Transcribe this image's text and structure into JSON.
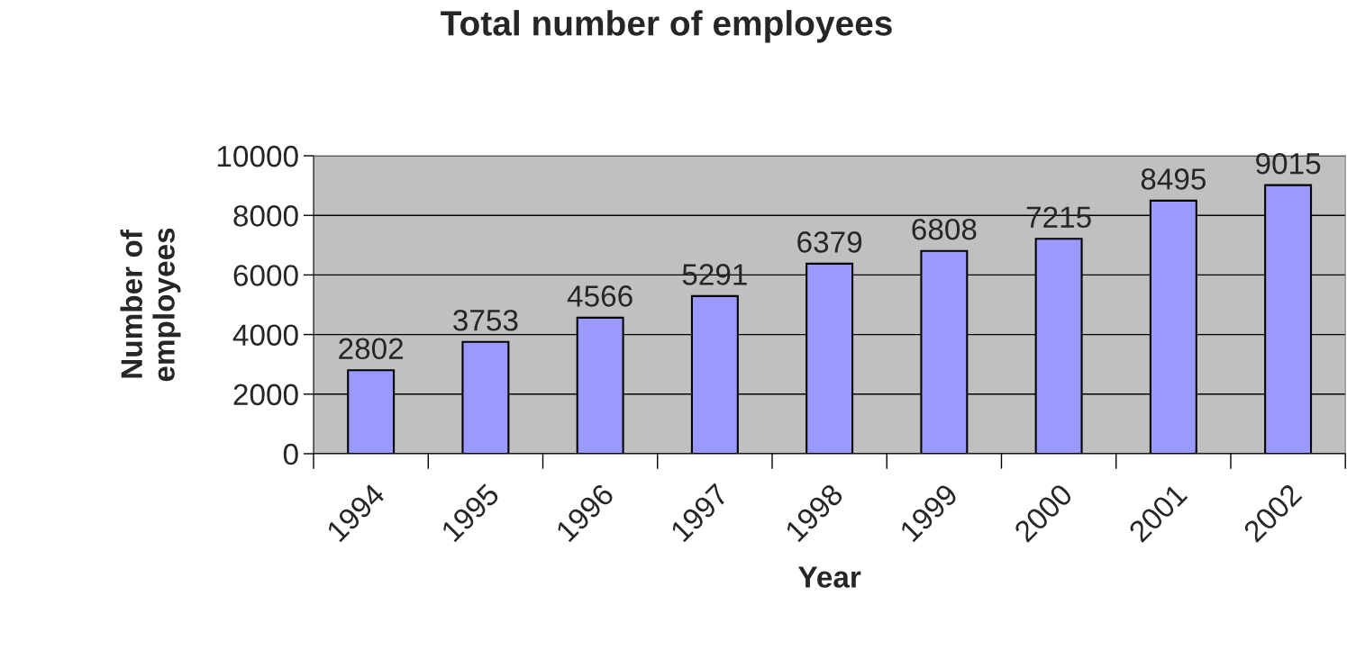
{
  "chart_data": {
    "type": "bar",
    "title": "Total number of employees",
    "xlabel": "Year",
    "ylabel": "Number of\nemployees",
    "categories": [
      "1994",
      "1995",
      "1996",
      "1997",
      "1998",
      "1999",
      "2000",
      "2001",
      "2002"
    ],
    "values": [
      2802,
      3753,
      4566,
      5291,
      6379,
      6808,
      7215,
      8495,
      9015
    ],
    "color": "#9999ff",
    "ylim": [
      0,
      10000
    ],
    "yticks": [
      0,
      2000,
      4000,
      6000,
      8000,
      10000
    ],
    "grid": "y",
    "data_labels": true,
    "legend": false
  }
}
